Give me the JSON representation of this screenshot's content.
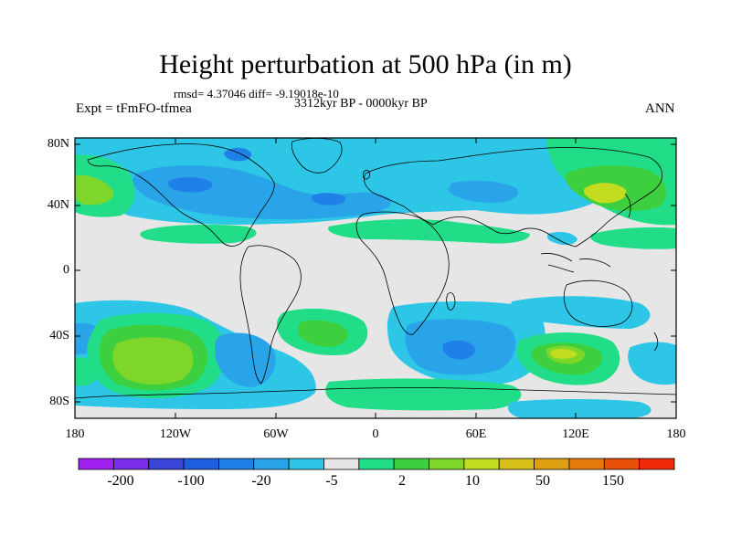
{
  "title": "Height perturbation at 500 hPa (in m)",
  "stats": "rmsd= 4.37046 diff= -9.19018e-10",
  "left_label": "Expt = tFmFO-tfmea",
  "subtitle": "3312kyr BP - 0000kyr BP",
  "right_label": "ANN",
  "axes": {
    "y_ticks": [
      "80N",
      "40N",
      "0",
      "40S",
      "80S"
    ],
    "x_ticks": [
      "180",
      "120W",
      "60W",
      "0",
      "60E",
      "120E",
      "180"
    ]
  },
  "colorbar": {
    "labels": [
      "-200",
      "-100",
      "-20",
      "-5",
      "2",
      "10",
      "50",
      "150"
    ],
    "colors": [
      "#a020f0",
      "#7a2ee8",
      "#3a44d8",
      "#1f5ee0",
      "#1f80e8",
      "#2aa4e8",
      "#2dc6e6",
      "#e6e6e6",
      "#22dd88",
      "#3ecf3e",
      "#7fd62a",
      "#c4dc20",
      "#d8c018",
      "#dea010",
      "#e47a0c",
      "#e8500a",
      "#ee2a0a"
    ]
  },
  "map_colors": {
    "background": "#e6e6e6",
    "light_blue": "#2dc6e6",
    "mid_blue": "#2aa4e8",
    "deep_blue": "#1f80e8",
    "green": "#22dd88",
    "lime": "#3ecf3e",
    "yellow_green": "#7fd62a",
    "yellow": "#c4dc20"
  }
}
